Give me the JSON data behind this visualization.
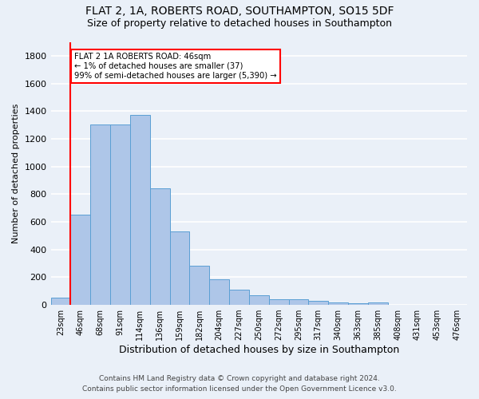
{
  "title": "FLAT 2, 1A, ROBERTS ROAD, SOUTHAMPTON, SO15 5DF",
  "subtitle": "Size of property relative to detached houses in Southampton",
  "xlabel": "Distribution of detached houses by size in Southampton",
  "ylabel": "Number of detached properties",
  "footnote1": "Contains HM Land Registry data © Crown copyright and database right 2024.",
  "footnote2": "Contains public sector information licensed under the Open Government Licence v3.0.",
  "bin_labels": [
    "23sqm",
    "46sqm",
    "68sqm",
    "91sqm",
    "114sqm",
    "136sqm",
    "159sqm",
    "182sqm",
    "204sqm",
    "227sqm",
    "250sqm",
    "272sqm",
    "295sqm",
    "317sqm",
    "340sqm",
    "363sqm",
    "385sqm",
    "408sqm",
    "431sqm",
    "453sqm",
    "476sqm"
  ],
  "bar_values": [
    55,
    650,
    1305,
    1305,
    1375,
    845,
    530,
    285,
    185,
    110,
    70,
    38,
    38,
    28,
    20,
    12,
    20,
    0,
    0,
    0,
    0
  ],
  "bar_color": "#aec6e8",
  "bar_edge_color": "#5a9fd4",
  "red_line_index": 1,
  "annotation_text": "FLAT 2 1A ROBERTS ROAD: 46sqm\n← 1% of detached houses are smaller (37)\n99% of semi-detached houses are larger (5,390) →",
  "annotation_box_color": "white",
  "annotation_box_edge_color": "red",
  "ylim": [
    0,
    1900
  ],
  "yticks": [
    0,
    200,
    400,
    600,
    800,
    1000,
    1200,
    1400,
    1600,
    1800
  ],
  "bg_color": "#eaf0f8",
  "plot_bg_color": "#eaf0f8",
  "grid_color": "white",
  "title_fontsize": 10,
  "subtitle_fontsize": 9,
  "footnote_fontsize": 6.5,
  "ylabel_fontsize": 8,
  "xlabel_fontsize": 9,
  "tick_fontsize": 7,
  "ytick_fontsize": 8
}
